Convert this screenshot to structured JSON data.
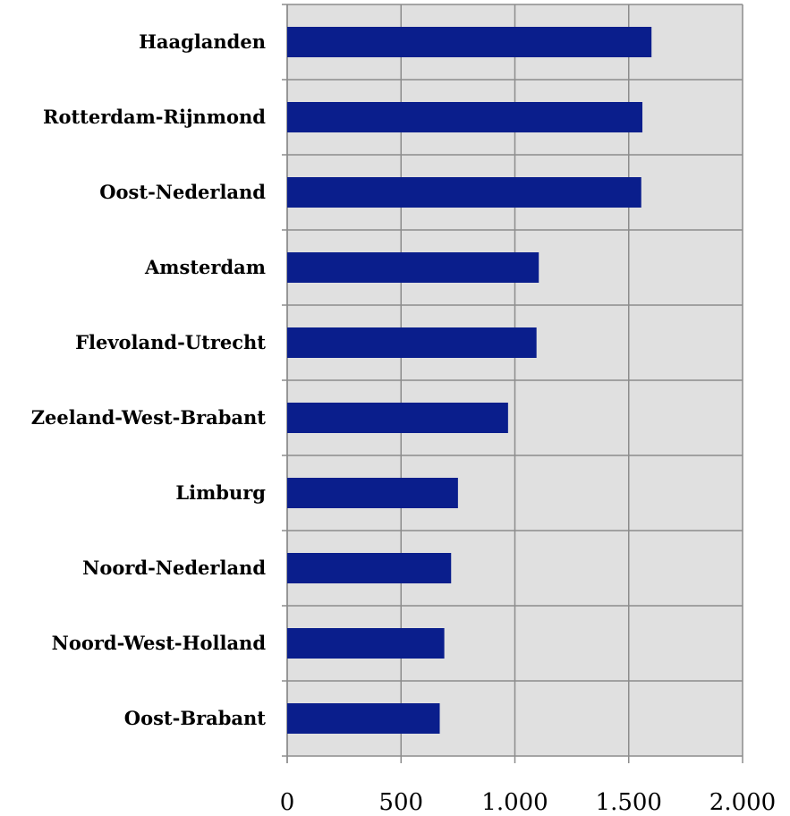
{
  "chart_data": {
    "type": "bar",
    "orientation": "horizontal",
    "title": "",
    "xlabel": "",
    "ylabel": "",
    "categories": [
      "Haaglanden",
      "Rotterdam-Rijnmond",
      "Oost-Nederland",
      "Amsterdam",
      "Flevoland-Utrecht",
      "Zeeland-West-Brabant",
      "Limburg",
      "Noord-Nederland",
      "Noord-West-Holland",
      "Oost-Brabant"
    ],
    "values": [
      1600,
      1560,
      1555,
      1105,
      1095,
      970,
      750,
      720,
      690,
      670
    ],
    "xlim": [
      0,
      2000
    ],
    "xticks": [
      0,
      500,
      1000,
      1500,
      2000
    ],
    "xtick_labels": [
      "0",
      "500",
      "1.000",
      "1.500",
      "2.000"
    ],
    "grid": true,
    "colors": {
      "bar": "#0a1e8c",
      "plot_background": "#e0e0e0",
      "grid": "#8c8c8c"
    }
  }
}
